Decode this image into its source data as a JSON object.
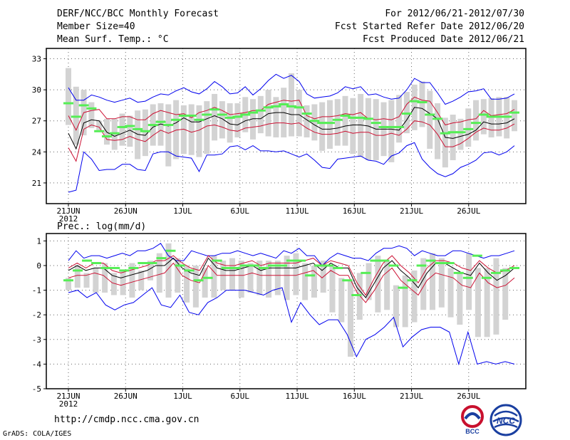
{
  "header": {
    "title": "DERF/NCC/BCC Monthly Forecast",
    "member_size": "Member Size=40",
    "variable": "Mean Surf. Temp.: °C",
    "period": "For 2012/06/21-2012/07/30",
    "started": "Fcst Started Refer Date 2012/06/20",
    "produced": "Fcst Produced Date 2012/06/21"
  },
  "footer": {
    "url": "http://cmdp.ncc.cma.gov.cn",
    "credit": "GrADS: COLA/IGES",
    "logo_bcc": "BCC",
    "logo_ncc": "NCC"
  },
  "colors": {
    "box": "#d3d3d3",
    "mean": "#000000",
    "spread": "#cc1133",
    "extreme": "#0000ee",
    "median": "#55ee55",
    "grid": "#666666"
  },
  "chart_data": [
    {
      "type": "line",
      "title": "Mean Surf. Temp.: °C",
      "x_start": "21JUN 2012",
      "days": 40,
      "x_ticks": [
        "21JUN",
        "26JUN",
        "1JUL",
        "6JUL",
        "11JUL",
        "16JUL",
        "21JUL",
        "26JUL"
      ],
      "x_year": "2012",
      "ylim": [
        19,
        34
      ],
      "yticks": [
        21,
        24,
        27,
        30,
        33
      ],
      "series": [
        {
          "name": "max",
          "values": [
            30.2,
            29.0,
            29.0,
            29.5,
            29.3,
            29.0,
            28.8,
            29.0,
            29.2,
            28.8,
            28.9,
            29.3,
            29.6,
            29.5,
            29.9,
            30.2,
            29.8,
            29.6,
            30.1,
            30.8,
            30.3,
            29.6,
            29.7,
            30.3,
            29.5,
            30.1,
            30.9,
            31.5,
            31.1,
            31.4,
            30.8,
            29.6,
            29.2,
            29.3,
            29.4,
            29.7,
            30.3,
            30.1,
            30.3,
            29.5,
            29.6,
            29.3,
            29.1,
            29.2,
            30.0,
            31.1,
            30.7,
            30.7,
            29.7,
            28.6,
            28.9,
            29.3,
            29.8,
            29.9,
            30.1,
            29.1,
            29.1,
            29.2,
            29.6
          ]
        },
        {
          "name": "upper",
          "values": [
            27.5,
            26.1,
            27.8,
            28.0,
            28.1,
            27.2,
            27.2,
            27.4,
            27.4,
            27.1,
            27.1,
            27.7,
            28.0,
            27.8,
            27.6,
            27.7,
            27.3,
            27.8,
            28.0,
            28.3,
            28.0,
            27.6,
            27.7,
            27.8,
            28.0,
            28.0,
            28.6,
            28.8,
            29.0,
            28.9,
            29.0,
            27.5,
            27.2,
            27.4,
            27.4,
            27.5,
            27.7,
            27.6,
            27.8,
            27.2,
            27.1,
            27.2,
            27.1,
            27.4,
            28.6,
            29.3,
            29.0,
            28.9,
            27.8,
            26.6,
            26.8,
            26.9,
            27.1,
            27.2,
            28.0,
            27.5,
            27.6,
            27.7,
            28.1
          ]
        },
        {
          "name": "mean",
          "values": [
            25.8,
            24.3,
            26.8,
            27.1,
            27.0,
            25.9,
            25.5,
            25.8,
            26.1,
            25.7,
            25.6,
            26.4,
            26.7,
            26.5,
            26.8,
            27.3,
            26.9,
            26.9,
            27.2,
            27.5,
            27.2,
            26.7,
            26.6,
            27.0,
            27.2,
            27.2,
            27.7,
            27.8,
            27.8,
            27.6,
            27.6,
            27.1,
            26.6,
            26.2,
            26.2,
            26.3,
            26.5,
            26.6,
            26.6,
            26.5,
            26.2,
            26.2,
            26.2,
            26.1,
            27.1,
            28.3,
            28.2,
            27.7,
            27.2,
            25.4,
            25.3,
            25.5,
            25.7,
            26.1,
            26.9,
            26.7,
            26.7,
            26.8,
            27.2
          ]
        },
        {
          "name": "lower",
          "values": [
            24.4,
            23.1,
            26.2,
            26.6,
            26.4,
            25.2,
            25.1,
            25.2,
            25.5,
            25.2,
            25.0,
            25.6,
            26.1,
            25.8,
            26.1,
            26.2,
            25.9,
            26.1,
            26.5,
            26.6,
            26.4,
            26.1,
            26.0,
            26.3,
            26.4,
            26.5,
            26.7,
            26.8,
            26.8,
            26.7,
            26.8,
            26.3,
            25.9,
            25.7,
            25.7,
            25.8,
            26.0,
            25.8,
            25.9,
            25.9,
            25.6,
            25.6,
            25.8,
            25.6,
            26.2,
            27.0,
            26.9,
            26.6,
            25.7,
            24.5,
            24.5,
            24.8,
            25.3,
            25.9,
            26.3,
            26.1,
            26.1,
            26.3,
            26.7
          ]
        },
        {
          "name": "min",
          "values": [
            20.1,
            20.3,
            24.0,
            23.3,
            22.2,
            22.3,
            22.3,
            22.8,
            22.8,
            22.3,
            22.2,
            23.8,
            24.0,
            24.0,
            23.6,
            23.5,
            23.4,
            22.1,
            23.7,
            23.7,
            23.8,
            24.5,
            24.6,
            24.2,
            24.6,
            24.1,
            24.1,
            24.0,
            24.1,
            23.8,
            23.5,
            23.8,
            23.2,
            22.5,
            22.4,
            23.3,
            23.4,
            23.5,
            23.6,
            23.2,
            23.1,
            22.8,
            23.6,
            23.9,
            24.6,
            24.9,
            23.3,
            22.5,
            21.9,
            21.6,
            21.9,
            22.5,
            22.8,
            23.2,
            23.9,
            24.0,
            23.7,
            24.0,
            24.6
          ]
        },
        {
          "name": "box_top",
          "values": [
            32.1,
            30.3,
            30.0,
            28.8,
            27.0,
            27.2,
            27.2,
            27.7,
            27.5,
            28.0,
            28.1,
            28.6,
            28.7,
            28.6,
            29.0,
            28.5,
            28.6,
            28.5,
            28.9,
            29.6,
            28.9,
            28.7,
            28.7,
            29.3,
            29.1,
            29.4,
            30.0,
            29.3,
            30.2,
            31.6,
            30.0,
            28.5,
            28.6,
            28.8,
            29.0,
            29.1,
            29.4,
            29.2,
            29.6,
            29.2,
            29.1,
            28.8,
            29.0,
            29.5,
            29.8,
            30.5,
            30.8,
            29.9,
            28.7,
            27.3,
            27.6,
            27.2,
            28.2,
            29.0,
            29.1,
            29.2,
            29.3,
            29.3,
            29.0
          ]
        },
        {
          "name": "box_bottom",
          "values": [
            26.6,
            24.7,
            25.6,
            26.3,
            26.1,
            24.7,
            24.2,
            24.6,
            24.5,
            23.3,
            23.6,
            24.6,
            24.6,
            22.6,
            23.3,
            23.8,
            23.7,
            23.5,
            23.8,
            25.1,
            25.3,
            24.9,
            25.4,
            25.9,
            25.2,
            25.8,
            25.5,
            25.4,
            25.4,
            25.5,
            25.5,
            25.4,
            25.1,
            24.1,
            24.3,
            24.6,
            24.6,
            23.8,
            23.5,
            23.2,
            23.2,
            23.6,
            23.0,
            24.9,
            25.8,
            26.1,
            26.4,
            24.3,
            23.3,
            22.5,
            23.2,
            24.2,
            24.5,
            25.1,
            25.7,
            25.4,
            25.5,
            25.3,
            26.0
          ]
        },
        {
          "name": "median",
          "values": [
            28.7,
            27.4,
            28.5,
            28.2,
            26.0,
            25.5,
            25.8,
            26.4,
            26.5,
            26.2,
            26.0,
            26.6,
            26.9,
            26.6,
            27.1,
            27.5,
            27.5,
            27.1,
            27.6,
            28.1,
            27.6,
            27.3,
            27.4,
            27.6,
            27.8,
            28.0,
            28.3,
            28.4,
            28.6,
            28.4,
            28.3,
            27.7,
            27.0,
            26.8,
            26.8,
            27.1,
            27.5,
            27.3,
            27.3,
            27.2,
            26.8,
            26.4,
            26.4,
            26.4,
            27.7,
            28.9,
            28.8,
            27.6,
            27.2,
            25.8,
            25.9,
            25.9,
            26.2,
            26.8,
            27.6,
            27.4,
            27.4,
            27.4,
            27.8
          ]
        }
      ]
    },
    {
      "type": "line",
      "title": "Prec.: log(mm/d)",
      "x_start": "21JUN 2012",
      "days": 40,
      "x_ticks": [
        "21JUN",
        "26JUN",
        "1JUL",
        "6JUL",
        "11JUL",
        "16JUL",
        "21JUL",
        "26JUL"
      ],
      "x_year": "2012",
      "ylim": [
        -5,
        1.3
      ],
      "yticks": [
        -5,
        -4,
        -3,
        -2,
        -1,
        0,
        1
      ],
      "series": [
        {
          "name": "max",
          "values": [
            0.2,
            0.6,
            0.3,
            0.4,
            0.4,
            0.3,
            0.4,
            0.5,
            0.4,
            0.6,
            0.6,
            0.7,
            0.9,
            0.4,
            0.2,
            0.2,
            0.6,
            0.5,
            0.4,
            0.4,
            0.5,
            0.5,
            0.6,
            0.5,
            0.4,
            0.5,
            0.4,
            0.3,
            0.6,
            0.5,
            0.7,
            0.4,
            0.4,
            0.0,
            0.3,
            0.5,
            0.4,
            0.3,
            0.3,
            0.2,
            0.5,
            0.7,
            0.7,
            0.8,
            0.7,
            0.4,
            0.6,
            0.5,
            0.4,
            0.4,
            0.6,
            0.6,
            0.5,
            0.4,
            0.3,
            0.4,
            0.4,
            0.5,
            0.6
          ]
        },
        {
          "name": "upper",
          "values": [
            -0.1,
            0.1,
            -0.1,
            0.1,
            0.1,
            -0.2,
            -0.3,
            -0.2,
            -0.1,
            0.0,
            0.2,
            0.2,
            0.4,
            0.1,
            -0.1,
            -0.2,
            0.4,
            0.1,
            0.0,
            0.0,
            0.1,
            0.2,
            0.0,
            0.1,
            0.1,
            0.1,
            0.1,
            0.2,
            0.3,
            0.0,
            0.2,
            0.1,
            0.0,
            -0.7,
            -1.2,
            -0.5,
            0.1,
            0.4,
            0.0,
            -0.3,
            -0.7,
            -0.1,
            0.2,
            0.2,
            0.1,
            -0.1,
            -0.2,
            0.2,
            -0.1,
            -0.3,
            -0.2,
            0.0
          ]
        },
        {
          "name": "mean",
          "values": [
            -0.2,
            0.0,
            -0.2,
            -0.1,
            -0.1,
            -0.4,
            -0.5,
            -0.4,
            -0.3,
            -0.2,
            0.0,
            0.0,
            0.3,
            -0.1,
            -0.3,
            -0.4,
            0.3,
            -0.1,
            -0.2,
            -0.2,
            -0.1,
            -0.0,
            -0.2,
            -0.1,
            -0.1,
            -0.1,
            -0.1,
            0.0,
            0.1,
            -0.2,
            0.1,
            -0.1,
            -0.1,
            -0.9,
            -1.3,
            -0.7,
            -0.1,
            0.2,
            -0.2,
            -0.5,
            -0.9,
            -0.3,
            0.1,
            0.1,
            -0.1,
            -0.3,
            -0.4,
            0.1,
            -0.3,
            -0.6,
            -0.4,
            -0.1
          ]
        },
        {
          "name": "lower",
          "values": [
            -0.5,
            -0.4,
            -0.4,
            -0.3,
            -0.4,
            -0.7,
            -0.8,
            -0.7,
            -0.6,
            -0.5,
            -0.4,
            -0.3,
            0.1,
            -0.4,
            -0.6,
            -0.7,
            0.0,
            -0.4,
            -0.4,
            -0.4,
            -0.4,
            -0.3,
            -0.4,
            -0.4,
            -0.4,
            -0.4,
            -0.4,
            -0.3,
            -0.2,
            -0.5,
            -0.2,
            -0.4,
            -0.4,
            -1.1,
            -1.5,
            -1.0,
            -0.4,
            -0.1,
            -0.6,
            -0.9,
            -1.2,
            -0.6,
            -0.3,
            -0.4,
            -0.5,
            -0.8,
            -0.9,
            -0.3,
            -0.7,
            -0.9,
            -0.8,
            -0.5
          ]
        },
        {
          "name": "min",
          "values": [
            -1.1,
            -1.0,
            -1.3,
            -1.1,
            -1.6,
            -1.8,
            -1.6,
            -1.5,
            -1.2,
            -0.9,
            -1.6,
            -1.7,
            -1.2,
            -1.9,
            -2.0,
            -1.5,
            -1.3,
            -1.0,
            -1.0,
            -1.0,
            -1.1,
            -1.2,
            -1.0,
            -0.9,
            -2.3,
            -1.5,
            -2.0,
            -2.4,
            -2.2,
            -2.2,
            -2.8,
            -3.7,
            -3.0,
            -2.8,
            -2.5,
            -2.1,
            -3.3,
            -2.9,
            -2.6,
            -2.5,
            -2.5,
            -2.7,
            -4.0,
            -2.7,
            -4.0,
            -3.9,
            -4.0,
            -3.9,
            -4.0
          ]
        },
        {
          "name": "box_top",
          "values": [
            -0.5,
            0.0,
            -0.3,
            -0.1,
            0.1,
            -0.3,
            -0.2,
            0.1,
            -0.2,
            0.2,
            0.5,
            0.9,
            0.3,
            0.0,
            0.0,
            -0.1,
            0.4,
            0.2,
            0.3,
            0.2,
            0.1,
            0.2,
            0.2,
            0.2,
            0.4,
            0.5,
            0.1,
            0.0,
            0.2,
            0.0,
            -0.5,
            -0.6,
            -0.3,
            0.1,
            0.4,
            0.2,
            -0.8,
            -0.4,
            -0.2,
            0.3,
            0.5,
            0.3,
            -0.1,
            -0.3,
            0.5,
            -0.1,
            -0.1,
            0.3,
            -0.1,
            0.0
          ]
        },
        {
          "name": "box_bottom",
          "values": [
            -1.0,
            -0.9,
            -0.9,
            -1.1,
            -1.1,
            -1.2,
            -1.2,
            -1.3,
            -1.0,
            -0.6,
            -1.1,
            -1.3,
            -1.1,
            -1.5,
            -1.7,
            -1.3,
            -1.3,
            -1.0,
            -1.0,
            -1.3,
            -1.1,
            -1.2,
            -1.3,
            -1.2,
            -1.4,
            -1.2,
            -1.4,
            -1.3,
            -1.1,
            -1.9,
            -2.3,
            -3.7,
            -2.2,
            -1.4,
            -1.9,
            -1.8,
            -2.5,
            -2.5,
            -2.3,
            -1.8,
            -1.8,
            -1.7,
            -2.1,
            -2.4,
            -1.8,
            -2.9,
            -2.9,
            -2.8,
            -2.2
          ]
        },
        {
          "name": "median",
          "values": [
            -0.6,
            -0.2,
            0.2,
            0.1,
            -0.1,
            -0.1,
            -0.2,
            -0.1,
            0.1,
            0.1,
            0.3,
            0.6,
            0.0,
            -0.2,
            -0.6,
            -0.5,
            0.2,
            -0.1,
            -0.1,
            0.0,
            0.0,
            -0.1,
            0.0,
            0.0,
            0.2,
            0.2,
            -0.4,
            0.0,
            0.0,
            -0.1,
            -0.6,
            -1.2,
            -0.3,
            0.2,
            0.2,
            0.0,
            -0.9,
            -0.6,
            0.0,
            0.2,
            0.1,
            0.1,
            -0.3,
            -0.5,
            0.4,
            -0.5,
            -0.3,
            -0.2,
            -0.1
          ]
        }
      ]
    }
  ]
}
